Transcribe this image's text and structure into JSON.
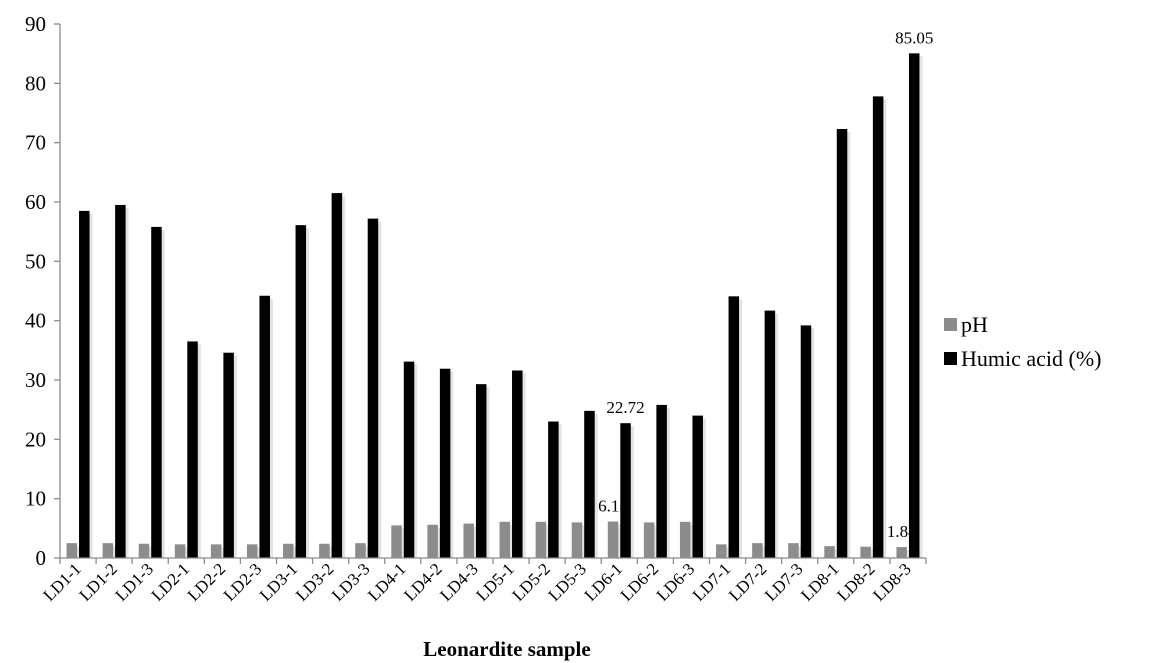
{
  "chart_data": {
    "type": "bar",
    "title": "",
    "xlabel": "Leonardite sample",
    "ylabel": "",
    "ylim": [
      0,
      90
    ],
    "yticks": [
      0,
      10,
      20,
      30,
      40,
      50,
      60,
      70,
      80,
      90
    ],
    "grid": false,
    "legend_position": "right",
    "categories": [
      "LD1-1",
      "LD1-2",
      "LD1-3",
      "LD2-1",
      "LD2-2",
      "LD2-3",
      "LD3-1",
      "LD3-2",
      "LD3-3",
      "LD4-1",
      "LD4-2",
      "LD4-3",
      "LD5-1",
      "LD5-2",
      "LD5-3",
      "LD6-1",
      "LD6-2",
      "LD6-3",
      "LD7-1",
      "LD7-2",
      "LD7-3",
      "LD8-1",
      "LD8-2",
      "LD8-3"
    ],
    "series": [
      {
        "name": "pH",
        "color": "#8c8c8c",
        "values": [
          2.5,
          2.5,
          2.4,
          2.3,
          2.3,
          2.3,
          2.4,
          2.4,
          2.5,
          5.5,
          5.6,
          5.8,
          6.1,
          6.1,
          6.0,
          6.15,
          6.0,
          6.1,
          2.3,
          2.5,
          2.5,
          2.0,
          1.9,
          1.84
        ]
      },
      {
        "name": "Humic acid (%)",
        "color": "#000000",
        "values": [
          58.5,
          59.5,
          55.8,
          36.5,
          34.6,
          44.2,
          56.1,
          61.5,
          57.2,
          33.1,
          31.9,
          29.3,
          31.6,
          23.0,
          24.8,
          22.72,
          25.8,
          24.0,
          44.1,
          41.7,
          39.2,
          72.3,
          77.8,
          85.05
        ]
      }
    ],
    "data_labels": [
      {
        "series": 1,
        "index": 15,
        "text": "22.72"
      },
      {
        "series": 1,
        "index": 23,
        "text": "85.05"
      },
      {
        "series": 0,
        "index": 15,
        "text": "6.15"
      },
      {
        "series": 0,
        "index": 23,
        "text": "1.84"
      }
    ]
  }
}
